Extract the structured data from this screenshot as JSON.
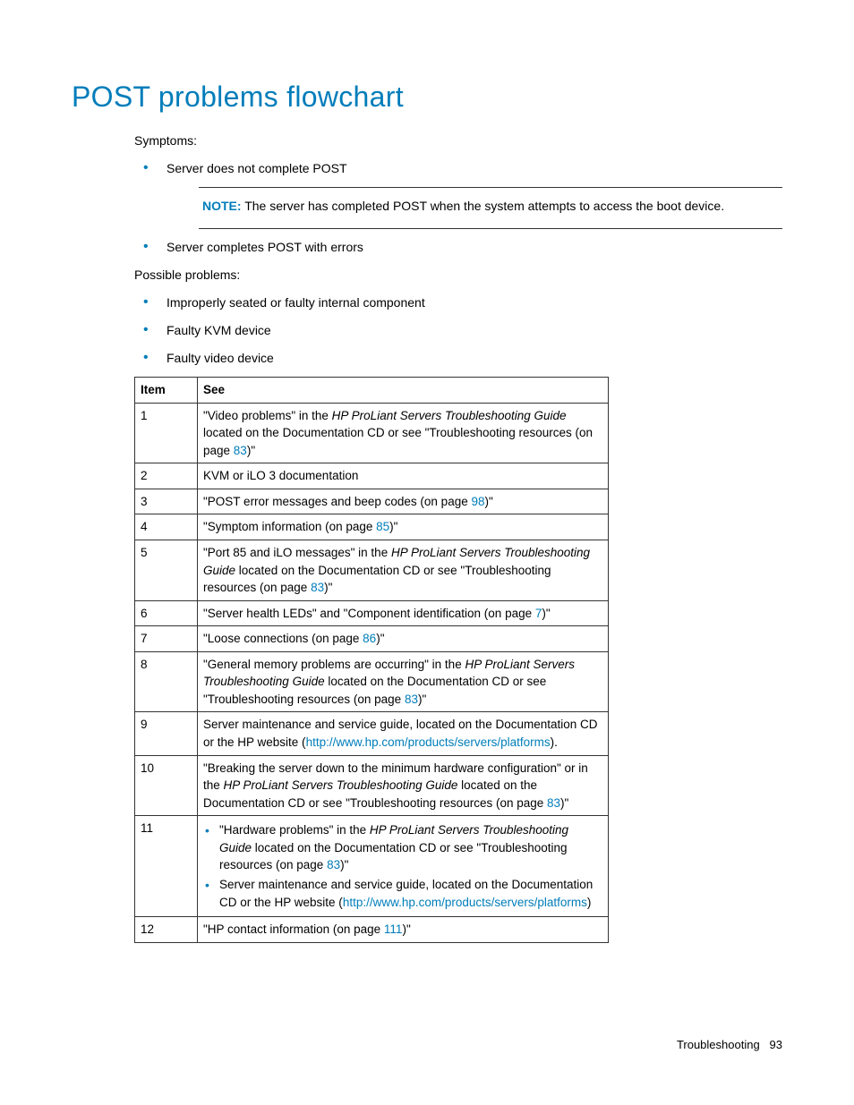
{
  "title": "POST problems flowchart",
  "symptoms_label": "Symptoms:",
  "symptoms": {
    "item1": "Server does not complete POST",
    "item2": "Server completes POST with errors"
  },
  "note": {
    "label": "NOTE:",
    "text": "The server has completed POST when the system attempts to access the boot device."
  },
  "possible_label": "Possible problems:",
  "possible": {
    "p1": "Improperly seated or faulty internal component",
    "p2": "Faulty KVM device",
    "p3": "Faulty video device"
  },
  "table": {
    "header_item": "Item",
    "header_see": "See",
    "rows": {
      "r1": {
        "item": "1",
        "pre": "\"Video problems\" in the ",
        "italic": "HP ProLiant Servers Troubleshooting Guide",
        "post": " located on the Documentation CD or see \"Troubleshooting resources (on page ",
        "link": "83",
        "end": ")\""
      },
      "r2": {
        "item": "2",
        "text": "KVM or iLO 3 documentation"
      },
      "r3": {
        "item": "3",
        "pre": "\"POST error messages and beep codes (on page ",
        "link": "98",
        "end": ")\""
      },
      "r4": {
        "item": "4",
        "pre": "\"Symptom information (on page ",
        "link": "85",
        "end": ")\""
      },
      "r5": {
        "item": "5",
        "pre": "\"Port 85 and iLO messages\" in the ",
        "italic": "HP ProLiant Servers Troubleshooting Guide",
        "post": " located on the Documentation CD or see \"Troubleshooting resources (on page ",
        "link": "83",
        "end": ")\""
      },
      "r6": {
        "item": "6",
        "pre": "\"Server health LEDs\" and \"Component identification (on page ",
        "link": "7",
        "end": ")\""
      },
      "r7": {
        "item": "7",
        "pre": "\"Loose connections (on page ",
        "link": "86",
        "end": ")\""
      },
      "r8": {
        "item": "8",
        "pre": "\"General memory problems are occurring\" in the ",
        "italic": "HP ProLiant Servers Troubleshooting Guide",
        "post": " located on the Documentation CD or see \"Troubleshooting resources (on page ",
        "link": "83",
        "end": ")\""
      },
      "r9": {
        "item": "9",
        "pre": "Server maintenance and service guide, located on the Documentation CD or the HP website (",
        "link": "http://www.hp.com/products/servers/platforms",
        "end": ")."
      },
      "r10": {
        "item": "10",
        "pre": "\"Breaking the server down to the minimum hardware configuration\" or in the ",
        "italic": "HP ProLiant Servers Troubleshooting Guide",
        "post": " located on the Documentation CD or see \"Troubleshooting resources (on page ",
        "link": "83",
        "end": ")\""
      },
      "r11": {
        "item": "11",
        "b1_pre": "\"Hardware problems\" in the ",
        "b1_italic": "HP ProLiant Servers Troubleshooting Guide",
        "b1_post": " located on the Documentation CD or see \"Troubleshooting resources (on page ",
        "b1_link": "83",
        "b1_end": ")\"",
        "b2_pre": "Server maintenance and service guide, located on the Documentation CD or the HP website (",
        "b2_link": "http://www.hp.com/products/servers/platforms",
        "b2_end": ")"
      },
      "r12": {
        "item": "12",
        "pre": "\"HP contact information (on page ",
        "link": "111",
        "end": ")\""
      }
    }
  },
  "footer": {
    "section": "Troubleshooting",
    "page": "93"
  },
  "colors": {
    "accent": "#007dba",
    "text": "#000000",
    "border": "#333333",
    "bg": "#ffffff"
  }
}
